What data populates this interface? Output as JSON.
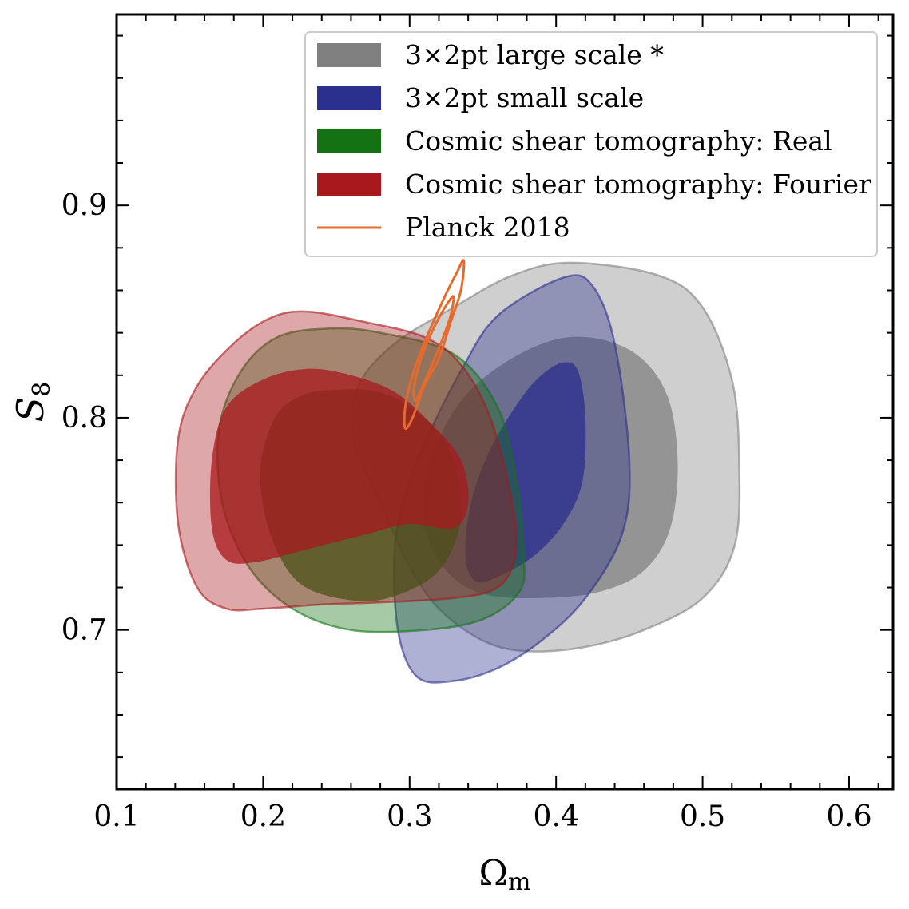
{
  "chart_data": {
    "type": "contour",
    "xlabel": "Ω",
    "xlabel_sub": "m",
    "ylabel": "S",
    "ylabel_sub": "8",
    "xlim": [
      0.1,
      0.63
    ],
    "ylim": [
      0.625,
      0.99
    ],
    "x_ticks": [
      0.1,
      0.2,
      0.3,
      0.4,
      0.5,
      0.6
    ],
    "x_tick_labels": [
      "0.1",
      "0.2",
      "0.3",
      "0.4",
      "0.5",
      "0.6"
    ],
    "y_ticks": [
      0.7,
      0.8,
      0.9
    ],
    "y_tick_labels": [
      "0.7",
      "0.8",
      "0.9"
    ],
    "grid": false,
    "legend_position": "top-right",
    "legend": [
      {
        "label": "3×2pt large scale *",
        "color": "#808080",
        "kind": "patch"
      },
      {
        "label": "3×2pt small scale",
        "color": "#2b2f8e",
        "kind": "patch"
      },
      {
        "label": "Cosmic shear tomography: Real",
        "color": "#137313",
        "kind": "patch"
      },
      {
        "label": "Cosmic shear tomography: Fourier",
        "color": "#a8181d",
        "kind": "patch"
      },
      {
        "label": "Planck 2018",
        "color": "#e86a2a",
        "kind": "line"
      }
    ],
    "series": [
      {
        "color": "#808080",
        "style": "filled",
        "outer": [
          [
            0.41,
            0.873
          ],
          [
            0.47,
            0.867
          ],
          [
            0.5,
            0.852
          ],
          [
            0.52,
            0.818
          ],
          [
            0.525,
            0.78
          ],
          [
            0.522,
            0.74
          ],
          [
            0.5,
            0.715
          ],
          [
            0.46,
            0.7
          ],
          [
            0.42,
            0.692
          ],
          [
            0.38,
            0.69
          ],
          [
            0.35,
            0.695
          ],
          [
            0.32,
            0.71
          ],
          [
            0.3,
            0.73
          ],
          [
            0.28,
            0.76
          ],
          [
            0.262,
            0.79
          ],
          [
            0.265,
            0.815
          ],
          [
            0.29,
            0.835
          ],
          [
            0.33,
            0.852
          ],
          [
            0.37,
            0.867
          ]
        ],
        "inner": [
          [
            0.41,
            0.838
          ],
          [
            0.45,
            0.832
          ],
          [
            0.475,
            0.812
          ],
          [
            0.483,
            0.78
          ],
          [
            0.478,
            0.748
          ],
          [
            0.46,
            0.728
          ],
          [
            0.43,
            0.718
          ],
          [
            0.39,
            0.715
          ],
          [
            0.35,
            0.717
          ],
          [
            0.325,
            0.728
          ],
          [
            0.31,
            0.75
          ],
          [
            0.315,
            0.78
          ],
          [
            0.335,
            0.808
          ],
          [
            0.37,
            0.828
          ]
        ]
      },
      {
        "color": "#2b2f8e",
        "style": "filled",
        "outer": [
          [
            0.405,
            0.866
          ],
          [
            0.425,
            0.862
          ],
          [
            0.44,
            0.835
          ],
          [
            0.45,
            0.78
          ],
          [
            0.445,
            0.745
          ],
          [
            0.42,
            0.715
          ],
          [
            0.39,
            0.695
          ],
          [
            0.36,
            0.682
          ],
          [
            0.33,
            0.676
          ],
          [
            0.305,
            0.678
          ],
          [
            0.292,
            0.7
          ],
          [
            0.29,
            0.74
          ],
          [
            0.3,
            0.77
          ],
          [
            0.315,
            0.795
          ],
          [
            0.335,
            0.822
          ],
          [
            0.36,
            0.848
          ]
        ],
        "inner": [
          [
            0.405,
            0.826
          ],
          [
            0.415,
            0.822
          ],
          [
            0.42,
            0.8
          ],
          [
            0.418,
            0.77
          ],
          [
            0.405,
            0.75
          ],
          [
            0.385,
            0.735
          ],
          [
            0.36,
            0.725
          ],
          [
            0.345,
            0.723
          ],
          [
            0.338,
            0.735
          ],
          [
            0.342,
            0.76
          ],
          [
            0.355,
            0.785
          ],
          [
            0.375,
            0.808
          ],
          [
            0.39,
            0.82
          ]
        ]
      },
      {
        "color": "#137313",
        "style": "filled",
        "outer": [
          [
            0.245,
            0.842
          ],
          [
            0.28,
            0.84
          ],
          [
            0.33,
            0.83
          ],
          [
            0.36,
            0.805
          ],
          [
            0.373,
            0.77
          ],
          [
            0.378,
            0.735
          ],
          [
            0.375,
            0.718
          ],
          [
            0.35,
            0.705
          ],
          [
            0.31,
            0.7
          ],
          [
            0.26,
            0.7
          ],
          [
            0.22,
            0.71
          ],
          [
            0.19,
            0.73
          ],
          [
            0.172,
            0.76
          ],
          [
            0.17,
            0.795
          ],
          [
            0.185,
            0.822
          ],
          [
            0.21,
            0.838
          ]
        ],
        "inner": [
          [
            0.245,
            0.813
          ],
          [
            0.28,
            0.812
          ],
          [
            0.31,
            0.8
          ],
          [
            0.33,
            0.78
          ],
          [
            0.335,
            0.752
          ],
          [
            0.32,
            0.728
          ],
          [
            0.29,
            0.716
          ],
          [
            0.26,
            0.714
          ],
          [
            0.225,
            0.722
          ],
          [
            0.205,
            0.745
          ],
          [
            0.198,
            0.775
          ],
          [
            0.208,
            0.8
          ],
          [
            0.225,
            0.81
          ]
        ]
      },
      {
        "color": "#a8181d",
        "style": "filled",
        "outer": [
          [
            0.23,
            0.85
          ],
          [
            0.27,
            0.845
          ],
          [
            0.31,
            0.838
          ],
          [
            0.335,
            0.825
          ],
          [
            0.355,
            0.8
          ],
          [
            0.37,
            0.76
          ],
          [
            0.372,
            0.735
          ],
          [
            0.36,
            0.72
          ],
          [
            0.33,
            0.715
          ],
          [
            0.28,
            0.713
          ],
          [
            0.24,
            0.712
          ],
          [
            0.2,
            0.71
          ],
          [
            0.175,
            0.71
          ],
          [
            0.155,
            0.72
          ],
          [
            0.142,
            0.75
          ],
          [
            0.142,
            0.79
          ],
          [
            0.155,
            0.815
          ],
          [
            0.18,
            0.835
          ],
          [
            0.205,
            0.847
          ]
        ],
        "inner": [
          [
            0.23,
            0.823
          ],
          [
            0.26,
            0.82
          ],
          [
            0.29,
            0.812
          ],
          [
            0.315,
            0.797
          ],
          [
            0.335,
            0.78
          ],
          [
            0.34,
            0.76
          ],
          [
            0.33,
            0.748
          ],
          [
            0.3,
            0.75
          ],
          [
            0.27,
            0.745
          ],
          [
            0.23,
            0.738
          ],
          [
            0.195,
            0.732
          ],
          [
            0.175,
            0.733
          ],
          [
            0.165,
            0.748
          ],
          [
            0.165,
            0.78
          ],
          [
            0.175,
            0.805
          ],
          [
            0.2,
            0.818
          ]
        ]
      },
      {
        "color": "#e86a2a",
        "style": "line",
        "outer": [
          [
            0.337,
            0.874
          ],
          [
            0.335,
            0.86
          ],
          [
            0.328,
            0.845
          ],
          [
            0.32,
            0.828
          ],
          [
            0.31,
            0.815
          ],
          [
            0.302,
            0.8
          ],
          [
            0.297,
            0.795
          ],
          [
            0.297,
            0.805
          ],
          [
            0.302,
            0.82
          ],
          [
            0.31,
            0.835
          ],
          [
            0.318,
            0.848
          ],
          [
            0.326,
            0.86
          ],
          [
            0.332,
            0.868
          ]
        ],
        "inner": [
          [
            0.33,
            0.857
          ],
          [
            0.328,
            0.848
          ],
          [
            0.323,
            0.838
          ],
          [
            0.316,
            0.826
          ],
          [
            0.309,
            0.815
          ],
          [
            0.304,
            0.808
          ],
          [
            0.303,
            0.814
          ],
          [
            0.307,
            0.826
          ],
          [
            0.313,
            0.837
          ],
          [
            0.32,
            0.847
          ],
          [
            0.326,
            0.854
          ]
        ]
      }
    ]
  }
}
